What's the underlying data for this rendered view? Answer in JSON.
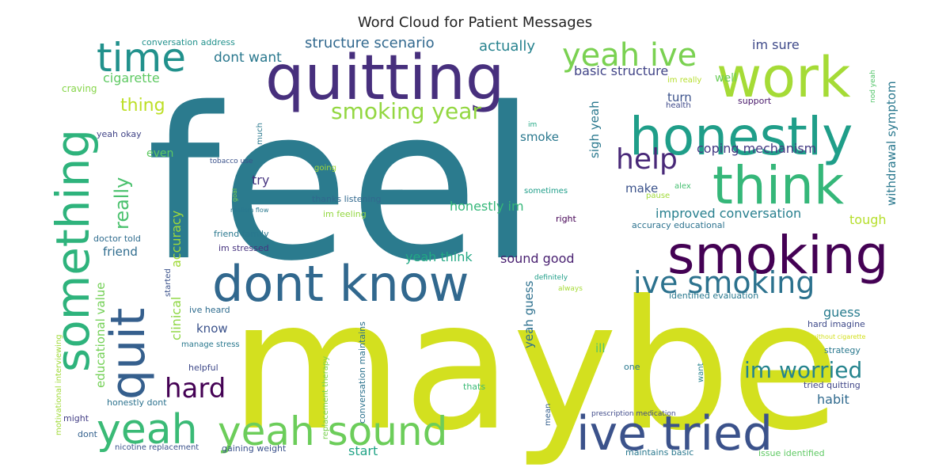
{
  "chart_data": {
    "type": "wordcloud",
    "title": "Word Cloud for Patient Messages",
    "words": [
      {
        "text": "feel",
        "color": "#2b7b8e"
      },
      {
        "text": "maybe",
        "color": "#d3e01f"
      },
      {
        "text": "quitting",
        "color": "#472f7d"
      },
      {
        "text": "work",
        "color": "#a5db36"
      },
      {
        "text": "honestly",
        "color": "#1f9e89"
      },
      {
        "text": "think",
        "color": "#35b779"
      },
      {
        "text": "smoking",
        "color": "#440154"
      },
      {
        "text": "dont know",
        "color": "#31688e"
      },
      {
        "text": "something",
        "color": "#2eb37c"
      },
      {
        "text": "yeah",
        "color": "#3aba76"
      },
      {
        "text": "quit",
        "color": "#355f8d"
      },
      {
        "text": "yeah sound",
        "color": "#6ccd5a"
      },
      {
        "text": "ive tried",
        "color": "#3b528b"
      },
      {
        "text": "time",
        "color": "#21918c"
      },
      {
        "text": "yeah ive",
        "color": "#7ad151"
      },
      {
        "text": "ive smoking",
        "color": "#2c728e"
      },
      {
        "text": "help",
        "color": "#482878"
      },
      {
        "text": "hard",
        "color": "#440154"
      },
      {
        "text": "smoking year",
        "color": "#93d741"
      },
      {
        "text": "im worried",
        "color": "#25848e"
      },
      {
        "text": "really",
        "color": "#4ac16d"
      },
      {
        "text": "thing",
        "color": "#bddf26"
      },
      {
        "text": "structure scenario",
        "color": "#31688e"
      },
      {
        "text": "dont want",
        "color": "#2a788e"
      },
      {
        "text": "actually",
        "color": "#26828e"
      },
      {
        "text": "im sure",
        "color": "#3e4989"
      },
      {
        "text": "basic structure",
        "color": "#414487"
      },
      {
        "text": "cigarette",
        "color": "#5ec962"
      },
      {
        "text": "coping mechanism",
        "color": "#443a83"
      },
      {
        "text": "withdrawal symptom",
        "color": "#2a788e"
      },
      {
        "text": "improved conversation",
        "color": "#277f8e"
      },
      {
        "text": "honestly im",
        "color": "#35b779"
      },
      {
        "text": "yeah think",
        "color": "#22a884"
      },
      {
        "text": "sound good",
        "color": "#481f70"
      },
      {
        "text": "accuracy",
        "color": "#a0da39"
      },
      {
        "text": "clinical",
        "color": "#8fd744"
      },
      {
        "text": "educational value",
        "color": "#73d056"
      },
      {
        "text": "sigh yeah",
        "color": "#2a788e"
      },
      {
        "text": "yeah guess",
        "color": "#2d708e"
      },
      {
        "text": "guess",
        "color": "#287c8e"
      },
      {
        "text": "tough",
        "color": "#b5de2b"
      },
      {
        "text": "habit",
        "color": "#306a8e"
      },
      {
        "text": "start",
        "color": "#20a386"
      },
      {
        "text": "try",
        "color": "#46337f"
      },
      {
        "text": "make",
        "color": "#3b528b"
      },
      {
        "text": "smoke",
        "color": "#2a788e"
      },
      {
        "text": "turn",
        "color": "#3b528b"
      },
      {
        "text": "well",
        "color": "#6ccd5a"
      },
      {
        "text": "even",
        "color": "#5ec962"
      },
      {
        "text": "friend",
        "color": "#2f6c8e"
      },
      {
        "text": "know",
        "color": "#3b528b"
      },
      {
        "text": "ill",
        "color": "#52c569"
      },
      {
        "text": "craving",
        "color": "#86d549"
      },
      {
        "text": "yeah okay",
        "color": "#414487"
      },
      {
        "text": "much",
        "color": "#2a788e"
      },
      {
        "text": "tobacco use",
        "color": "#3b528b"
      },
      {
        "text": "going",
        "color": "#a5db36"
      },
      {
        "text": "goal",
        "color": "#7ad151"
      },
      {
        "text": "realism flow",
        "color": "#2a788e"
      },
      {
        "text": "im feeling",
        "color": "#93d741"
      },
      {
        "text": "thanks listening",
        "color": "#31688e"
      },
      {
        "text": "sometimes",
        "color": "#1f9e89"
      },
      {
        "text": "alex",
        "color": "#44bf70"
      },
      {
        "text": "pause",
        "color": "#a0da39"
      },
      {
        "text": "right",
        "color": "#440154"
      },
      {
        "text": "accuracy educational",
        "color": "#2c728e"
      },
      {
        "text": "doctor told",
        "color": "#2f6c8e"
      },
      {
        "text": "friend family",
        "color": "#2a788e"
      },
      {
        "text": "im stressed",
        "color": "#46337f"
      },
      {
        "text": "started",
        "color": "#3b528b"
      },
      {
        "text": "conversation address",
        "color": "#21918c"
      },
      {
        "text": "im really",
        "color": "#b5de2b"
      },
      {
        "text": "health",
        "color": "#3e4989"
      },
      {
        "text": "support",
        "color": "#48186a"
      },
      {
        "text": "nod yeah",
        "color": "#52c569"
      },
      {
        "text": "im",
        "color": "#22a884"
      },
      {
        "text": "definitely",
        "color": "#1f9e89"
      },
      {
        "text": "always",
        "color": "#a5db36"
      },
      {
        "text": "identified evaluation",
        "color": "#2a788e"
      },
      {
        "text": "hard imagine",
        "color": "#3e4989"
      },
      {
        "text": "without cigarette",
        "color": "#d3e01f"
      },
      {
        "text": "strategy",
        "color": "#2a788e"
      },
      {
        "text": "ive heard",
        "color": "#2f6c8e"
      },
      {
        "text": "manage stress",
        "color": "#2a788e"
      },
      {
        "text": "helpful",
        "color": "#3e4989"
      },
      {
        "text": "one",
        "color": "#2a788e"
      },
      {
        "text": "want",
        "color": "#26828e"
      },
      {
        "text": "thats",
        "color": "#3aba76"
      },
      {
        "text": "tried quitting",
        "color": "#404688"
      },
      {
        "text": "honestly dont",
        "color": "#2c728e"
      },
      {
        "text": "motivational interviewing",
        "color": "#a0da39"
      },
      {
        "text": "might",
        "color": "#433e85"
      },
      {
        "text": "dont",
        "color": "#34618d"
      },
      {
        "text": "nicotine replacement",
        "color": "#3b528b"
      },
      {
        "text": "gaining weight",
        "color": "#3b528b"
      },
      {
        "text": "conversation maintains",
        "color": "#2c728e"
      },
      {
        "text": "replacement therapy",
        "color": "#7ad151"
      },
      {
        "text": "mean",
        "color": "#355f8d"
      },
      {
        "text": "prescription medication",
        "color": "#3e4989"
      },
      {
        "text": "maintains basic",
        "color": "#2a788e"
      },
      {
        "text": "issue identified",
        "color": "#5ec962"
      }
    ]
  }
}
